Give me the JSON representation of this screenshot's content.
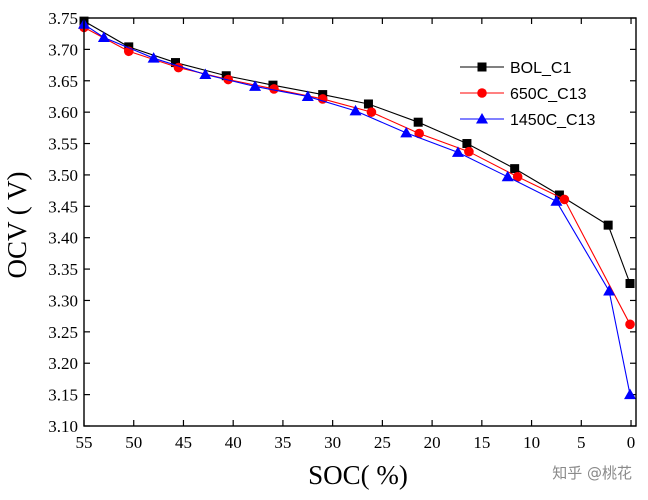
{
  "chart_data": {
    "type": "line",
    "title": "",
    "xlabel": "SOC( %)",
    "ylabel": "OCV ( V)",
    "xlim": [
      55,
      -0.5
    ],
    "ylim": [
      3.1,
      3.75
    ],
    "x_reversed": true,
    "grid": false,
    "xticks": [
      55,
      50,
      45,
      40,
      35,
      30,
      25,
      20,
      15,
      10,
      5,
      0
    ],
    "yticks": [
      "3.10",
      "3.15",
      "3.20",
      "3.25",
      "3.30",
      "3.35",
      "3.40",
      "3.45",
      "3.50",
      "3.55",
      "3.60",
      "3.65",
      "3.70",
      "3.75"
    ],
    "legend_position": "top-right",
    "series": [
      {
        "name": "BOL_C1",
        "color": "#000000",
        "marker": "square",
        "x": [
          55.0,
          50.5,
          45.8,
          40.7,
          36.0,
          31.0,
          26.4,
          21.4,
          16.5,
          11.7,
          7.2,
          2.3,
          0.1
        ],
        "y": [
          3.745,
          3.704,
          3.679,
          3.658,
          3.643,
          3.628,
          3.613,
          3.584,
          3.55,
          3.51,
          3.468,
          3.42,
          3.327
        ]
      },
      {
        "name": "650C_C13",
        "color": "#ff0000",
        "marker": "circle",
        "x": [
          55.0,
          50.5,
          45.5,
          40.5,
          35.9,
          31.0,
          26.1,
          21.3,
          16.3,
          11.4,
          6.7,
          0.1
        ],
        "y": [
          3.735,
          3.697,
          3.671,
          3.652,
          3.637,
          3.621,
          3.6,
          3.566,
          3.537,
          3.497,
          3.461,
          3.262
        ]
      },
      {
        "name": "1450C_C13",
        "color": "#0000ff",
        "marker": "triangle",
        "x": [
          55.0,
          53.0,
          48.0,
          42.8,
          37.8,
          32.5,
          27.7,
          22.6,
          17.4,
          12.4,
          7.5,
          2.2,
          0.1
        ],
        "y": [
          3.74,
          3.719,
          3.686,
          3.66,
          3.641,
          3.625,
          3.602,
          3.567,
          3.536,
          3.497,
          3.458,
          3.315,
          3.15
        ]
      }
    ]
  },
  "watermark": "知乎 @桃花"
}
